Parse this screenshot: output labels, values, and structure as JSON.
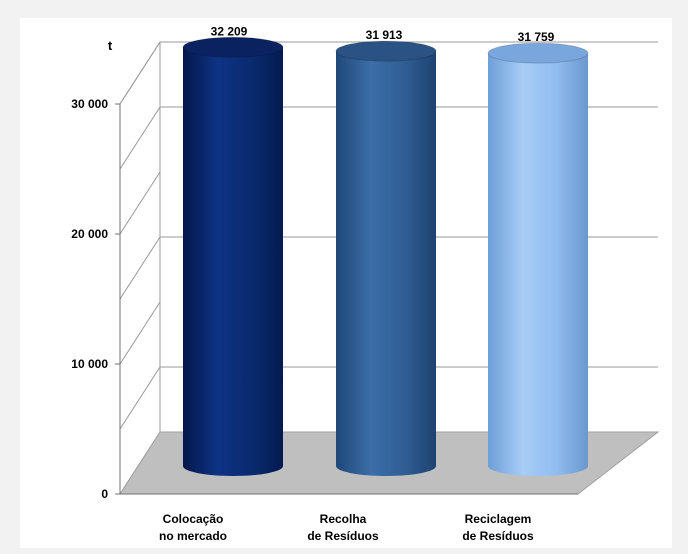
{
  "chart_data": {
    "type": "bar",
    "title": "",
    "unit_label": "t",
    "xlabel": "",
    "ylabel": "t",
    "categories": [
      [
        "Colocação",
        "no mercado"
      ],
      [
        "Recolha",
        "de Resíduos"
      ],
      [
        "Reciclagem",
        "de Resíduos"
      ]
    ],
    "values": [
      32209,
      31913,
      31759
    ],
    "value_labels": [
      "32 209",
      "31 913",
      "31 759"
    ],
    "ylim": [
      0,
      30000
    ],
    "yticks": [
      0,
      10000,
      20000,
      30000
    ],
    "ytick_labels": [
      "0",
      "10 000",
      "20 000",
      "30 000"
    ],
    "grid": true,
    "legend": "none",
    "style": "3d-cylinder",
    "colors": {
      "bar_0": "#0b2a6b",
      "bar_1": "#2e5c94",
      "bar_2": "#8fbbef",
      "floor": "#bfbfbf",
      "grid": "#9a9a9a"
    }
  }
}
